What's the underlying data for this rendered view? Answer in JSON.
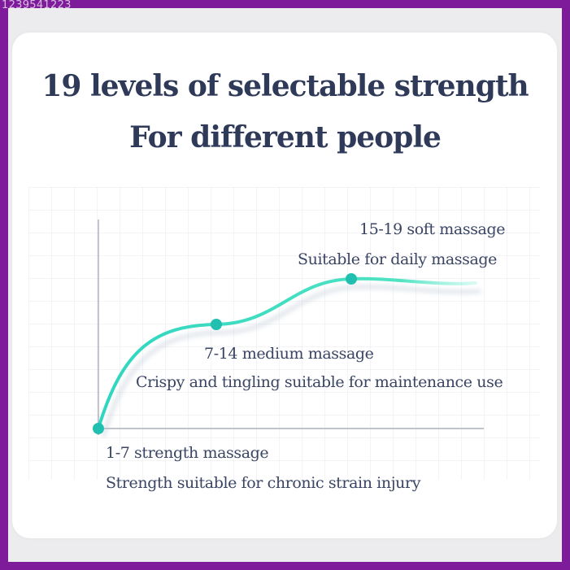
{
  "watermark": "1239541223",
  "title_line1": "19 levels of selectable strength",
  "title_line2": "For different people",
  "levels": [
    {
      "range": "1-7 strength massage",
      "desc": "Strength suitable for chronic strain injury"
    },
    {
      "range": "7-14 medium massage",
      "desc": "Crispy and tingling suitable for maintenance use"
    },
    {
      "range": "15-19 soft massage",
      "desc": "Suitable for daily massage"
    }
  ],
  "colors": {
    "frame": "#7e1b9a",
    "title": "#2e3a58",
    "curve": "#2fd6bf",
    "dot": "#21bfb0",
    "axis": "#9aa0ab"
  }
}
